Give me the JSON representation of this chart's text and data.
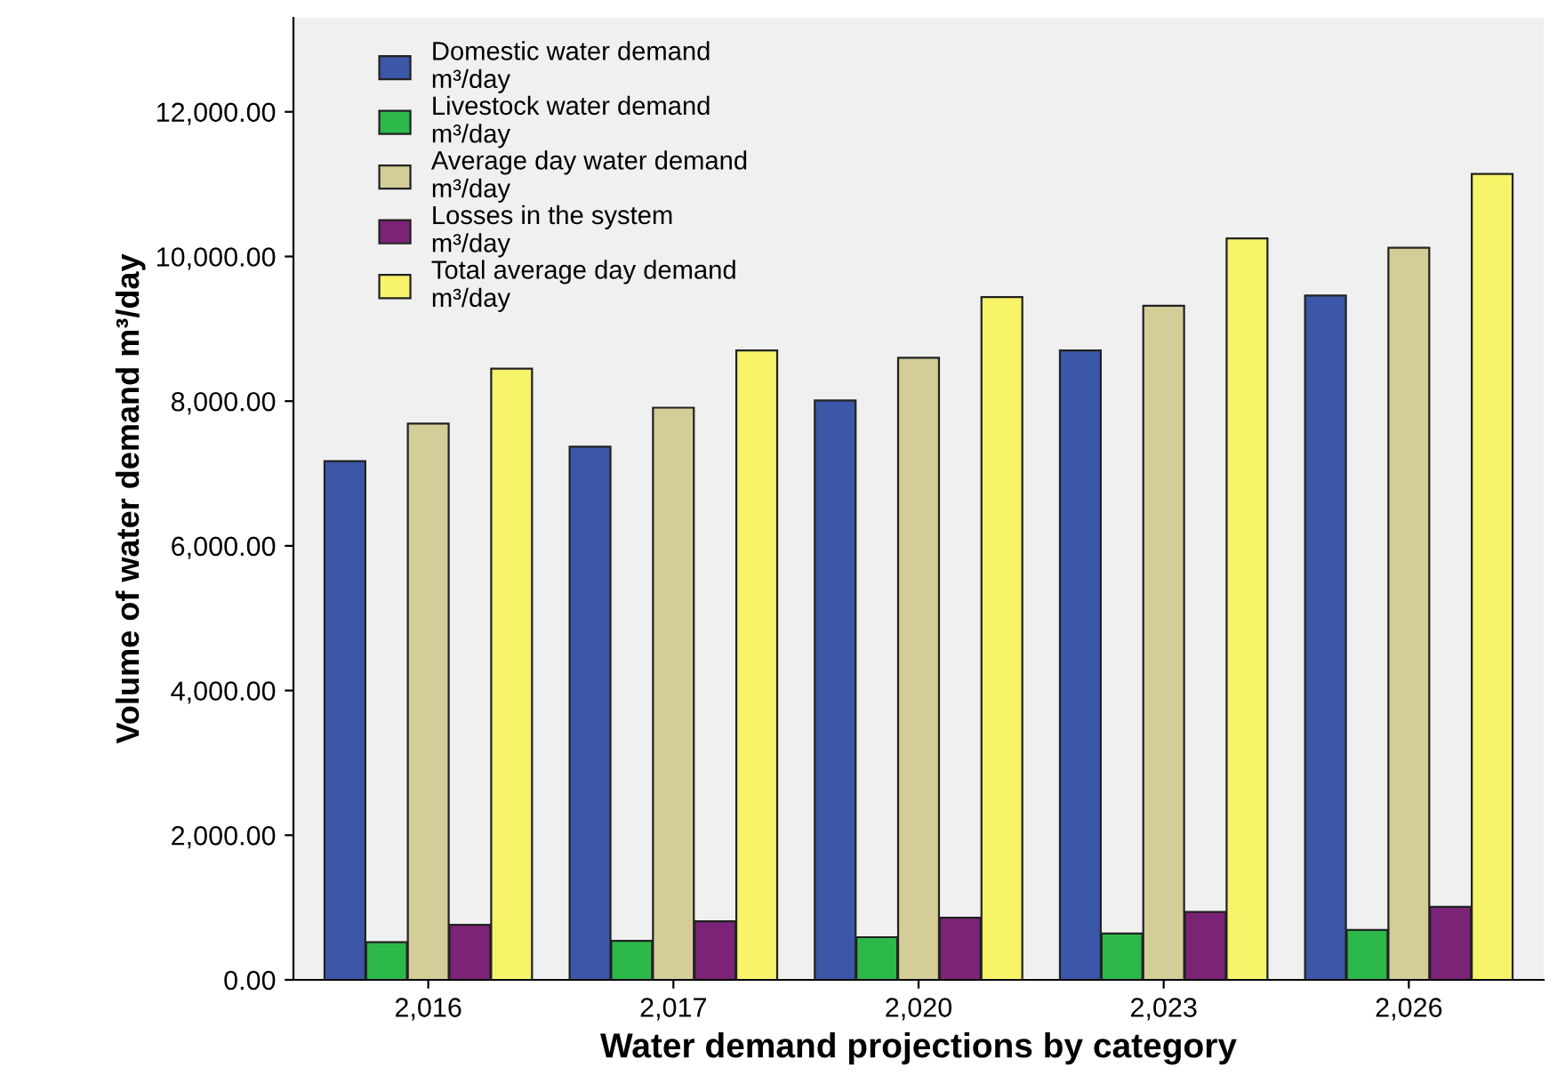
{
  "chart_data": {
    "type": "bar",
    "xlabel": "Water demand projections by category",
    "ylabel": "Volume of water demand m³/day",
    "categories": [
      "2,016",
      "2,017",
      "2,020",
      "2,023",
      "2,026"
    ],
    "series": [
      {
        "name": "Domestic water demand\nm³/day",
        "color": "#3c56a8",
        "values": [
          7170,
          7370,
          8010,
          8700,
          9460
        ]
      },
      {
        "name": "Livestock water demand\nm³/day",
        "color": "#2db84a",
        "values": [
          520,
          540,
          590,
          640,
          690
        ]
      },
      {
        "name": "Average day water demand\nm³/day",
        "color": "#d4cd97",
        "values": [
          7690,
          7910,
          8600,
          9320,
          10120
        ]
      },
      {
        "name": "Losses in the system\nm³/day",
        "color": "#7b2377",
        "values": [
          760,
          810,
          860,
          940,
          1010
        ]
      },
      {
        "name": "Total average day demand\nm³/day",
        "color": "#f8f46a",
        "values": [
          8450,
          8700,
          9440,
          10250,
          11140
        ]
      }
    ],
    "ylim": [
      0,
      13300
    ],
    "yticks": [
      {
        "value": 0,
        "label": "0.00"
      },
      {
        "value": 2000,
        "label": "2,000.00"
      },
      {
        "value": 4000,
        "label": "4,000.00"
      },
      {
        "value": 6000,
        "label": "6,000.00"
      },
      {
        "value": 8000,
        "label": "8,000.00"
      },
      {
        "value": 10000,
        "label": "10,000.00"
      },
      {
        "value": 12000,
        "label": "12,000.00"
      }
    ],
    "grid": false,
    "legend": "top left"
  }
}
